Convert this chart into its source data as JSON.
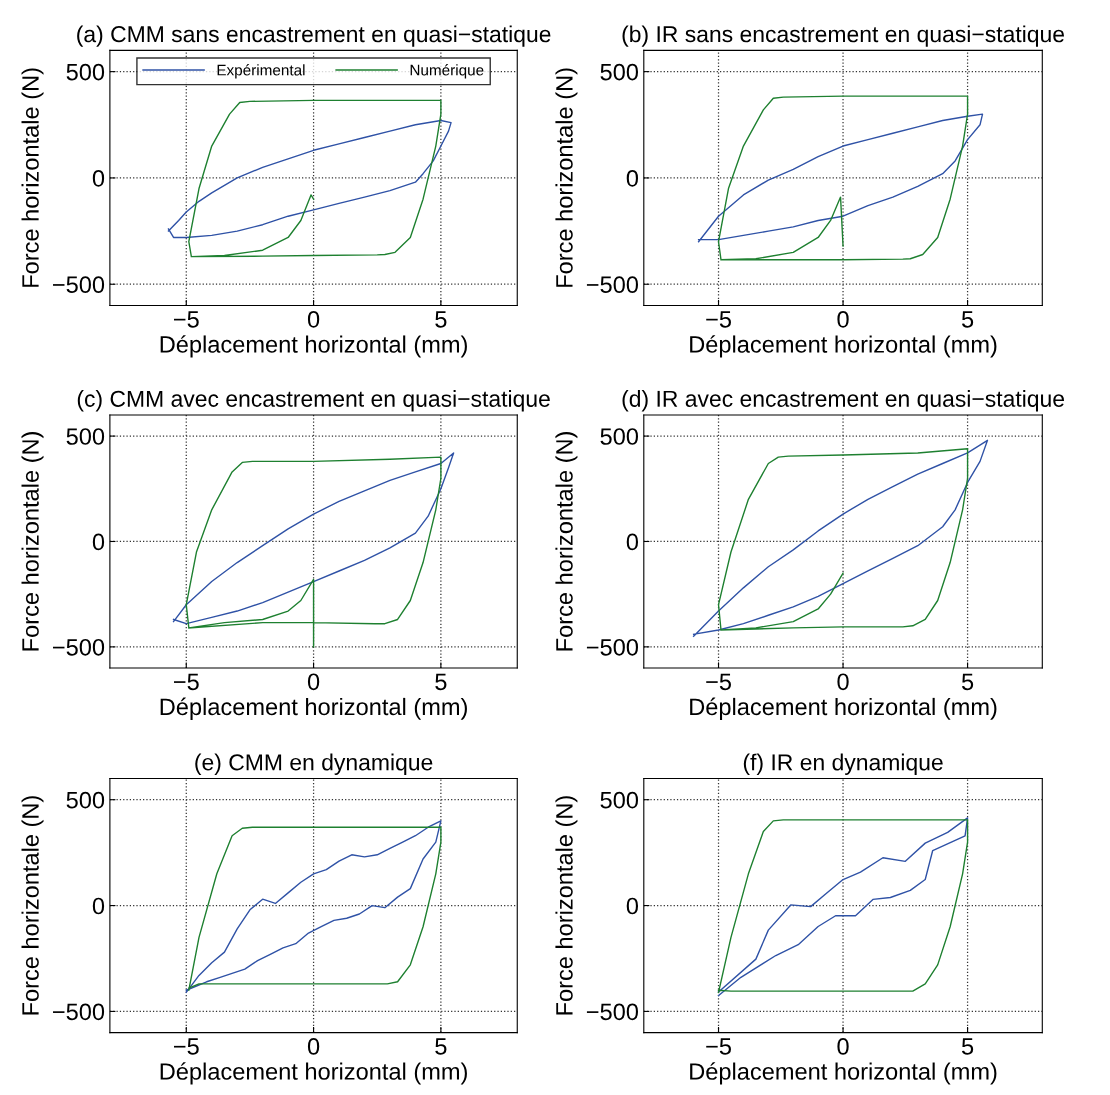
{
  "chart_data": [
    {
      "type": "line",
      "title": "(a) CMM sans encastrement en quasi−statique",
      "xlabel": "Déplacement horizontal (mm)",
      "ylabel": "Force horizontale (N)",
      "xlim": [
        -8,
        8
      ],
      "ylim": [
        -600,
        600
      ],
      "xticks": [
        -5,
        0,
        5
      ],
      "yticks": [
        -500,
        0,
        500
      ],
      "grid": true,
      "legend": "top",
      "series": [
        {
          "name": "Expérimental",
          "color": "#2f52a6",
          "x": [
            -5.7,
            -5.3,
            -5,
            -4.5,
            -4,
            -3,
            -2,
            -1,
            0,
            1,
            2,
            3,
            4,
            5,
            5.4,
            5.3,
            5,
            4.7,
            4.3,
            4,
            3,
            2,
            1,
            0,
            -1,
            -2,
            -3,
            -4,
            -5,
            -5.5,
            -5.7
          ],
          "values": [
            -250,
            -200,
            -160,
            -110,
            -70,
            0,
            50,
            90,
            130,
            160,
            190,
            220,
            250,
            270,
            260,
            220,
            150,
            80,
            20,
            -20,
            -60,
            -90,
            -120,
            -150,
            -180,
            -220,
            -250,
            -270,
            -280,
            -280,
            -240
          ]
        },
        {
          "name": "Numérique",
          "color": "#1e8030",
          "x": [
            0,
            -0.1,
            -0.5,
            -1,
            -2,
            -3.5,
            -4.8,
            -4.9,
            -4.5,
            -4,
            -3.3,
            -2.9,
            -2.5,
            0,
            3,
            5,
            5,
            4.8,
            4.3,
            3.8,
            3.2,
            2.8,
            2.5,
            0,
            -2,
            -4.8
          ],
          "values": [
            -100,
            -80,
            -200,
            -280,
            -340,
            -365,
            -370,
            -300,
            -50,
            150,
            300,
            355,
            360,
            365,
            365,
            365,
            300,
            150,
            -100,
            -280,
            -350,
            -360,
            -362,
            -365,
            -368,
            -370
          ]
        }
      ]
    },
    {
      "type": "line",
      "title": "(b) IR sans encastrement en quasi−statique",
      "xlabel": "Déplacement horizontal (mm)",
      "ylabel": "Force horizontale (N)",
      "xlim": [
        -8,
        8
      ],
      "ylim": [
        -600,
        600
      ],
      "xticks": [
        -5,
        0,
        5
      ],
      "yticks": [
        -500,
        0,
        500
      ],
      "grid": true,
      "series": [
        {
          "color": "#2f52a6",
          "x": [
            -5.8,
            -5,
            -4,
            -3,
            -2,
            -1,
            0,
            1,
            2,
            3,
            4,
            5,
            5.6,
            5.5,
            5,
            4.5,
            4,
            3,
            2,
            1,
            0,
            -1,
            -2,
            -3,
            -4,
            -5,
            -5.8
          ],
          "values": [
            -300,
            -180,
            -80,
            -10,
            40,
            100,
            150,
            180,
            210,
            240,
            270,
            290,
            300,
            250,
            180,
            80,
            20,
            -40,
            -90,
            -130,
            -180,
            -200,
            -230,
            -250,
            -270,
            -290,
            -290
          ]
        },
        {
          "color": "#1e8030",
          "x": [
            0,
            -0.1,
            -0.5,
            -1,
            -2,
            -3.5,
            -4.9,
            -5,
            -4.6,
            -4,
            -3.2,
            -2.8,
            -2.4,
            0,
            3,
            5,
            5,
            4.8,
            4.3,
            3.8,
            3.2,
            2.7,
            2.4,
            0,
            -2,
            -4.9
          ],
          "values": [
            -320,
            -90,
            -200,
            -280,
            -350,
            -380,
            -385,
            -300,
            -50,
            150,
            320,
            375,
            380,
            385,
            385,
            385,
            300,
            150,
            -100,
            -280,
            -360,
            -380,
            -382,
            -385,
            -385,
            -385
          ]
        }
      ]
    },
    {
      "type": "line",
      "title": "(c) CMM avec encastrement en quasi−statique",
      "xlabel": "Déplacement horizontal (mm)",
      "ylabel": "Force horizontale (N)",
      "xlim": [
        -8,
        8
      ],
      "ylim": [
        -600,
        600
      ],
      "xticks": [
        -5,
        0,
        5
      ],
      "yticks": [
        -500,
        0,
        500
      ],
      "grid": true,
      "series": [
        {
          "color": "#2f52a6",
          "x": [
            -5.5,
            -5,
            -4,
            -3,
            -2,
            -1,
            0,
            1,
            2,
            3,
            4,
            5,
            5.5,
            5.3,
            5,
            4.5,
            4,
            3,
            2,
            1,
            0,
            -1,
            -2,
            -3,
            -4,
            -5,
            -5.5
          ],
          "values": [
            -380,
            -300,
            -190,
            -100,
            -20,
            60,
            130,
            190,
            240,
            290,
            330,
            370,
            420,
            350,
            250,
            120,
            40,
            -30,
            -90,
            -140,
            -190,
            -240,
            -290,
            -330,
            -360,
            -390,
            -370
          ]
        },
        {
          "color": "#1e8030",
          "x": [
            0,
            0,
            -0.5,
            -1,
            -2,
            -3.5,
            -4.9,
            -5,
            -4.6,
            -4,
            -3.2,
            -2.8,
            -2.4,
            0,
            3,
            5,
            5,
            4.8,
            4.3,
            3.8,
            3.3,
            2.8,
            2.4,
            0,
            -2,
            -4.9
          ],
          "values": [
            -500,
            -180,
            -280,
            -330,
            -370,
            -385,
            -410,
            -300,
            -50,
            150,
            330,
            375,
            380,
            380,
            390,
            400,
            300,
            150,
            -100,
            -280,
            -370,
            -390,
            -390,
            -385,
            -385,
            -410
          ]
        }
      ]
    },
    {
      "type": "line",
      "title": "(d) IR avec encastrement en quasi−statique",
      "xlabel": "Déplacement horizontal (mm)",
      "ylabel": "Force horizontale (N)",
      "xlim": [
        -8,
        8
      ],
      "ylim": [
        -600,
        600
      ],
      "xticks": [
        -5,
        0,
        5
      ],
      "yticks": [
        -500,
        0,
        500
      ],
      "grid": true,
      "series": [
        {
          "color": "#2f52a6",
          "x": [
            -6,
            -5,
            -4,
            -3,
            -2,
            -1,
            0,
            1,
            2,
            3,
            4,
            5,
            5.8,
            5.5,
            5,
            4.5,
            4,
            3,
            2,
            1,
            0,
            -1,
            -2,
            -3,
            -4,
            -5,
            -6
          ],
          "values": [
            -450,
            -330,
            -220,
            -120,
            -40,
            50,
            130,
            200,
            260,
            320,
            370,
            420,
            480,
            380,
            280,
            150,
            70,
            -20,
            -80,
            -140,
            -200,
            -260,
            -310,
            -350,
            -390,
            -420,
            -440
          ]
        },
        {
          "color": "#1e8030",
          "x": [
            0,
            -0.5,
            -1,
            -2,
            -3.5,
            -4.9,
            -5,
            -4.5,
            -3.8,
            -3,
            -2.6,
            -2.2,
            0,
            3,
            5,
            5,
            4.8,
            4.3,
            3.8,
            3.3,
            2.8,
            2.4,
            0,
            -2,
            -4.9
          ],
          "values": [
            -150,
            -250,
            -320,
            -380,
            -410,
            -420,
            -300,
            -50,
            200,
            370,
            400,
            405,
            410,
            420,
            440,
            300,
            150,
            -100,
            -280,
            -370,
            -400,
            -405,
            -405,
            -410,
            -420
          ]
        }
      ]
    },
    {
      "type": "line",
      "title": "(e) CMM en dynamique",
      "xlabel": "Déplacement horizontal (mm)",
      "ylabel": "Force horizontale (N)",
      "xlim": [
        -8,
        8
      ],
      "ylim": [
        -600,
        600
      ],
      "xticks": [
        -5,
        0,
        5
      ],
      "yticks": [
        -500,
        0,
        500
      ],
      "grid": true,
      "series": [
        {
          "color": "#2f52a6",
          "x": [
            -5,
            -4.5,
            -4,
            -3.5,
            -3,
            -2.5,
            -2,
            -1.5,
            -1,
            -0.5,
            0,
            0.5,
            1,
            1.5,
            2,
            2.5,
            3,
            3.5,
            4,
            4.5,
            5,
            4.8,
            4.3,
            3.8,
            3.3,
            2.8,
            2.3,
            1.8,
            1.3,
            0.8,
            0.3,
            -0.2,
            -0.7,
            -1.2,
            -1.7,
            -2.2,
            -2.7,
            -3.2,
            -3.7,
            -4.2,
            -5
          ],
          "values": [
            -410,
            -330,
            -270,
            -220,
            -110,
            -20,
            30,
            10,
            60,
            110,
            150,
            170,
            210,
            240,
            230,
            240,
            270,
            300,
            330,
            370,
            400,
            300,
            220,
            80,
            40,
            -10,
            0,
            -40,
            -60,
            -70,
            -100,
            -130,
            -180,
            -200,
            -230,
            -260,
            -300,
            -320,
            -340,
            -360,
            -400
          ]
        },
        {
          "color": "#1e8030",
          "x": [
            -4.9,
            -4.5,
            -3.8,
            -3.2,
            -2.8,
            -2.4,
            0,
            3,
            5,
            5,
            4.8,
            4.3,
            3.8,
            3.3,
            2.9,
            2.5,
            0,
            -2,
            -4.5,
            -4.9
          ],
          "values": [
            -400,
            -150,
            150,
            330,
            365,
            370,
            370,
            370,
            370,
            300,
            150,
            -100,
            -280,
            -360,
            -370,
            -370,
            -370,
            -370,
            -370,
            -390
          ]
        }
      ]
    },
    {
      "type": "line",
      "title": "(f) IR en dynamique",
      "xlabel": "Déplacement horizontal (mm)",
      "ylabel": "Force horizontale (N)",
      "xlim": [
        -8,
        8
      ],
      "ylim": [
        -600,
        600
      ],
      "xticks": [
        -5,
        0,
        5
      ],
      "yticks": [
        -500,
        0,
        500
      ],
      "grid": true,
      "series": [
        {
          "color": "#2f52a6",
          "x": [
            -5,
            -3.5,
            -3,
            -2.1,
            -1.3,
            -0.7,
            0,
            0.7,
            1.6,
            2.5,
            3.3,
            4.2,
            5,
            4.9,
            3.6,
            3.3,
            2.7,
            1.9,
            1.2,
            0.5,
            -0.3,
            -1,
            -1.8,
            -2.7,
            -4.1,
            -5
          ],
          "values": [
            -408,
            -253,
            -116,
            3,
            -5,
            55,
            123,
            158,
            226,
            209,
            295,
            346,
            414,
            329,
            260,
            123,
            72,
            38,
            29,
            -48,
            -48,
            -99,
            -185,
            -236,
            -339,
            -425
          ]
        },
        {
          "color": "#1e8030",
          "x": [
            -5,
            -4.5,
            -3.8,
            -3.2,
            -2.8,
            -2.4,
            0,
            3,
            5,
            5,
            4.8,
            4.3,
            3.8,
            3.3,
            2.8,
            2.4,
            0,
            -2,
            -4.5,
            -5
          ],
          "values": [
            -410,
            -150,
            150,
            350,
            400,
            405,
            405,
            405,
            405,
            300,
            150,
            -100,
            -280,
            -370,
            -404,
            -404,
            -404,
            -404,
            -404,
            -400
          ]
        }
      ]
    }
  ]
}
